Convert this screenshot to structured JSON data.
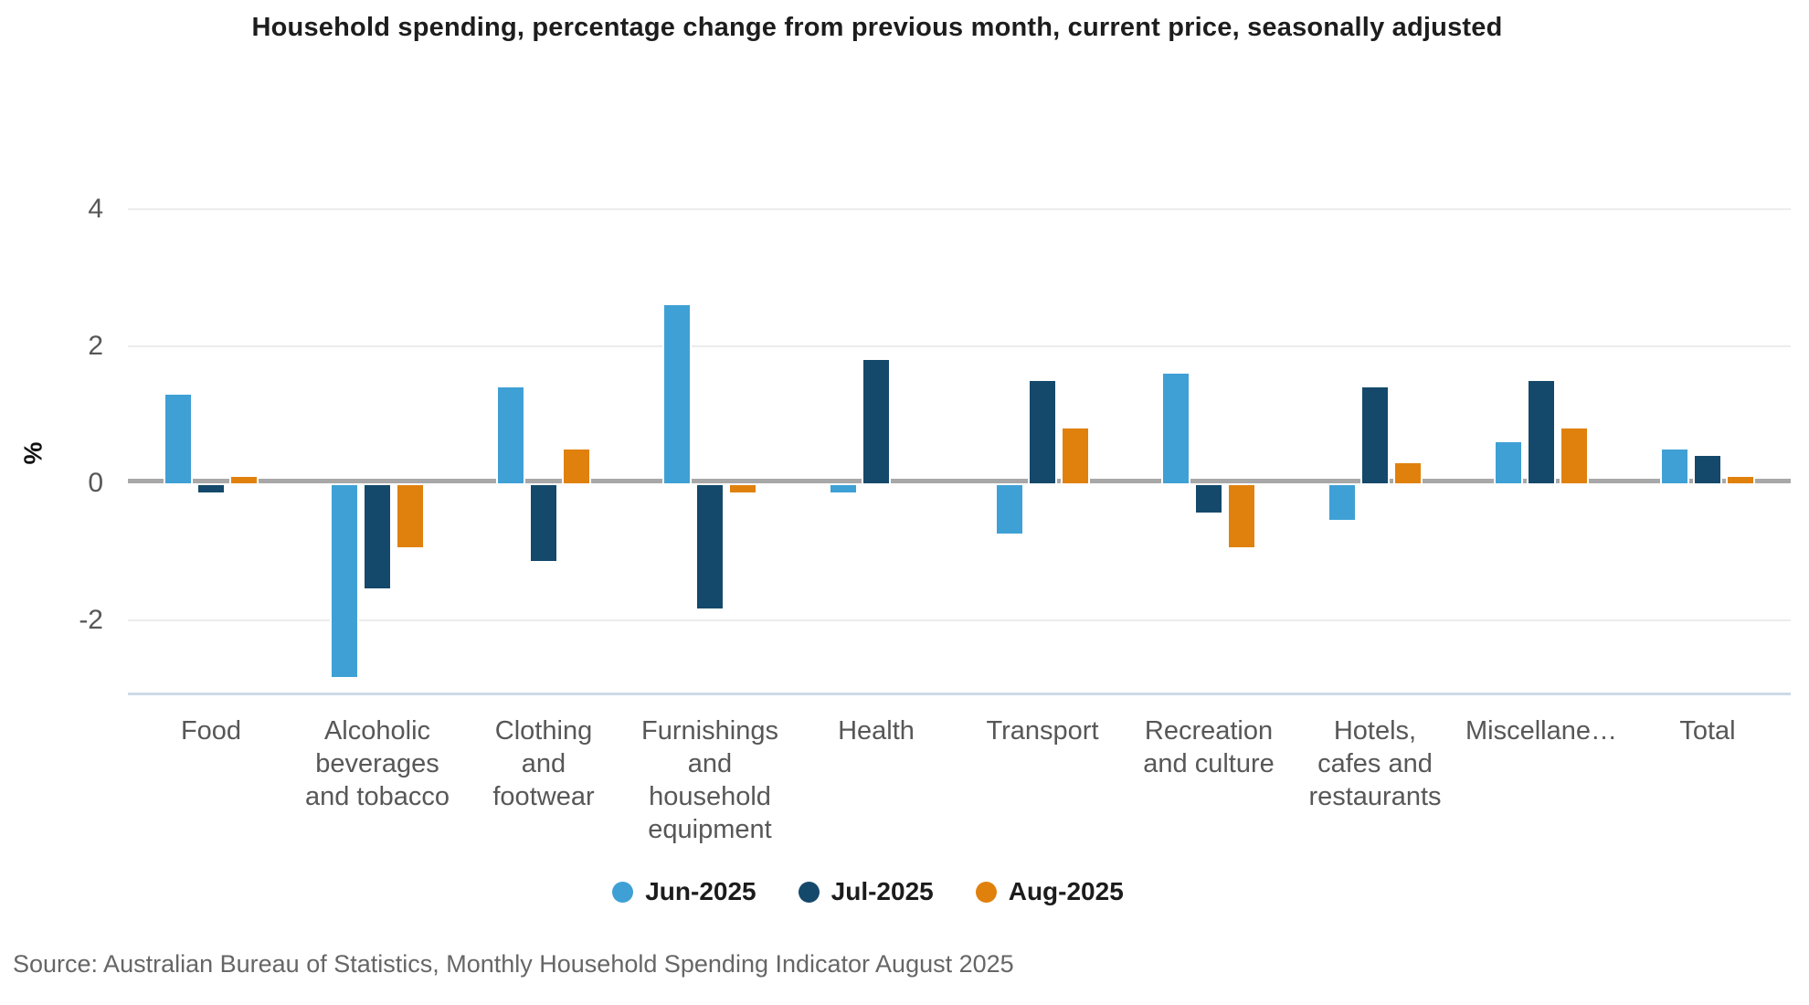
{
  "page": {
    "title": "Household spending, percentage change from previous month, current price, seasonally adjusted",
    "source_note": "Source: Australian Bureau of Statistics, Monthly Household Spending Indicator August 2025"
  },
  "chart_data": {
    "type": "bar",
    "title": "Household spending, percentage change from previous month, current price, seasonally adjusted",
    "xlabel": "",
    "ylabel": "%",
    "yticks": [
      4,
      2,
      0,
      -2
    ],
    "ylim": [
      -3.05,
      4.9
    ],
    "grid": "horizontal",
    "legend_position": "bottom",
    "categories": [
      "Food",
      "Alcoholic\nbeverages\nand tobacco",
      "Clothing\nand\nfootwear",
      "Furnishings\nand\nhousehold\nequipment",
      "Health",
      "Transport",
      "Recreation\nand culture",
      "Hotels,\ncafes and\nrestaurants",
      "Miscellane…",
      "Total"
    ],
    "series": [
      {
        "name": "Jun-2025",
        "color": "#3FA0D5",
        "values": [
          1.3,
          -2.8,
          1.4,
          2.6,
          -0.1,
          -0.7,
          1.6,
          -0.5,
          0.6,
          0.5
        ]
      },
      {
        "name": "Jul-2025",
        "color": "#14496B",
        "values": [
          -0.1,
          -1.5,
          -1.1,
          -1.8,
          1.8,
          1.5,
          -0.4,
          1.4,
          1.5,
          0.4
        ]
      },
      {
        "name": "Aug-2025",
        "color": "#E0810E",
        "values": [
          0.1,
          -0.9,
          0.5,
          -0.1,
          0,
          0.8,
          -0.9,
          0.3,
          0.8,
          0.1
        ]
      }
    ],
    "colors": {
      "zero_line": "#a8a8a8",
      "gridline": "#ececec",
      "axis_baseline": "#ccd9e8",
      "tick_text": "#575757"
    }
  }
}
